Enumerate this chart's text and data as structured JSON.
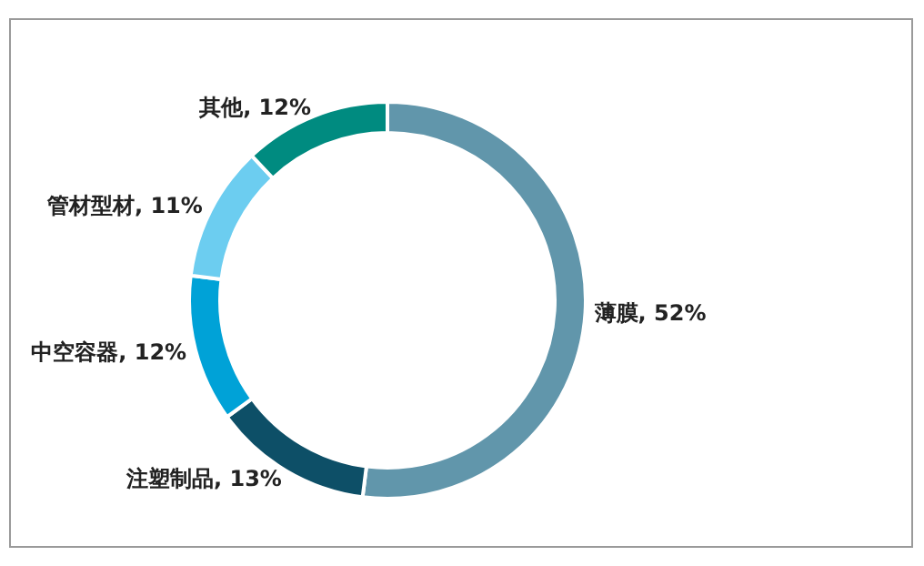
{
  "chart_data": {
    "type": "donut",
    "categories": [
      "薄膜",
      "注塑制品",
      "中空容器",
      "管材型材",
      "其他"
    ],
    "values": [
      52,
      13,
      12,
      11,
      12
    ],
    "value_labels": [
      "52%",
      "13%",
      "12%",
      "11%",
      "12%"
    ],
    "colors": [
      "#6196ab",
      "#0d4f67",
      "#00a2d7",
      "#6ccdf0",
      "#008b80"
    ],
    "legend": false
  }
}
